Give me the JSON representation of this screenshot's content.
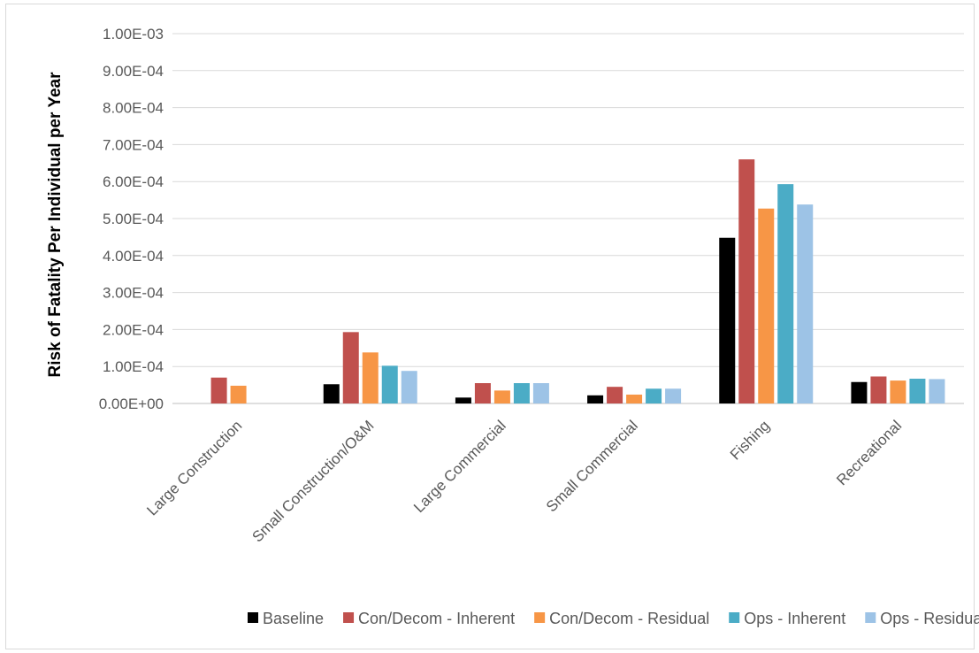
{
  "chart_data": {
    "type": "bar",
    "title": "",
    "xlabel": "",
    "ylabel": "Risk of Fatality Per Individual per Year",
    "ylim": [
      0,
      0.001
    ],
    "yticks": [
      "0.00E+00",
      "1.00E-04",
      "2.00E-04",
      "3.00E-04",
      "4.00E-04",
      "5.00E-04",
      "6.00E-04",
      "7.00E-04",
      "8.00E-04",
      "9.00E-04",
      "1.00E-03"
    ],
    "grid": true,
    "legend_position": "bottom",
    "categories": [
      "Large Construction",
      "Small Construction/O&M",
      "Large Commercial",
      "Small Commercial",
      "Fishing",
      "Recreational"
    ],
    "series": [
      {
        "name": "Baseline",
        "color": "#000000",
        "values": [
          0,
          5.2e-05,
          1.6e-05,
          2.2e-05,
          0.000448,
          5.8e-05
        ]
      },
      {
        "name": "Con/Decom - Inherent",
        "color": "#c0504d",
        "values": [
          7e-05,
          0.000193,
          5.5e-05,
          4.5e-05,
          0.00066,
          7.3e-05
        ]
      },
      {
        "name": "Con/Decom - Residual",
        "color": "#f79646",
        "values": [
          4.8e-05,
          0.000138,
          3.5e-05,
          2.4e-05,
          0.000527,
          6.2e-05
        ]
      },
      {
        "name": "Ops - Inherent",
        "color": "#4bacc6",
        "values": [
          0,
          0.000102,
          5.5e-05,
          4e-05,
          0.000593,
          6.7e-05
        ]
      },
      {
        "name": "Ops - Residual",
        "color": "#9dc3e6",
        "values": [
          0,
          8.8e-05,
          5.5e-05,
          4e-05,
          0.000538,
          6.6e-05
        ]
      }
    ]
  }
}
